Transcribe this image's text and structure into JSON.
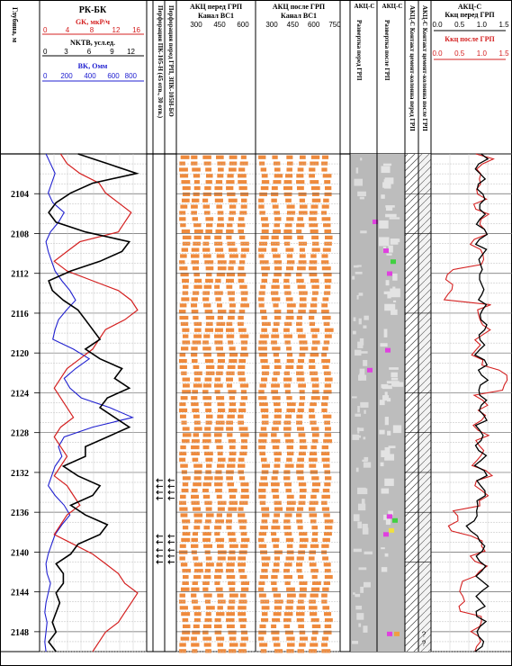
{
  "chart_data": {
    "type": "line",
    "depth_axis": {
      "label": "Глубина, м",
      "range": [
        2100,
        2150
      ],
      "ticks": [
        2104,
        2108,
        2112,
        2116,
        2120,
        2124,
        2128,
        2132,
        2136,
        2140,
        2144,
        2148
      ]
    },
    "tracks": {
      "rk_bk": {
        "title": "РК-БК",
        "curves": [
          {
            "name": "GK, мкР/ч",
            "color": "#d42020",
            "range": [
              0,
              16
            ],
            "ticks": [
              "0",
              "4",
              "8",
              "12",
              "16"
            ]
          },
          {
            "name": "NKTB, усл.ед.",
            "color": "#000000",
            "range": [
              0,
              14
            ],
            "ticks": [
              "0",
              "3",
              "6",
              "9",
              "12"
            ]
          },
          {
            "name": "BK, Омм",
            "color": "#2020d0",
            "range": [
              0,
              900
            ],
            "ticks": [
              "0",
              "200",
              "400",
              "600",
              "800"
            ]
          }
        ]
      },
      "perf_pk": {
        "title": "Перфорация ПК-105-Н (45 отв., 30 отв.)"
      },
      "perf_grp": {
        "title": "Перфорация перед ГРП, ЗПК-105Н-БО"
      },
      "akc_before": {
        "title_line1": "АКЦ перед ГРП",
        "title_line2": "Канал ВС1",
        "ticks": [
          "300",
          "450",
          "600"
        ]
      },
      "akc_after": {
        "title_line1": "АКЦ после ГРП",
        "title_line2": "Канал ВС1",
        "ticks": [
          "300",
          "450",
          "600",
          "750"
        ]
      },
      "akcc_1": {
        "title": "АКЦ-С",
        "vertical": "Развертка перед ГРП"
      },
      "akcc_2": {
        "title": "АКЦ-С",
        "vertical": "Развертка после ГРП"
      },
      "contact_before": {
        "title": "АКЦ-С Контакт цемент-колонна перед ГРП"
      },
      "contact_after": {
        "title": "АКЦ-С Контакт цемент-колонна после ГРП"
      },
      "kcc": {
        "title": "АКЦ-С",
        "curves": [
          {
            "name": "Ккц перед ГРП",
            "color": "#000000",
            "range": [
              0,
              1.5
            ],
            "ticks": [
              "0.0",
              "0.5",
              "1.0",
              "1.5"
            ]
          },
          {
            "name": "Ккц после ГРП",
            "color": "#d42020",
            "range": [
              0,
              1.5
            ],
            "ticks": [
              "0.0",
              "0.5",
              "1.0",
              "1.5"
            ]
          }
        ]
      }
    },
    "perforation_intervals": [
      2132.8,
      2133.4,
      2134.0,
      2134.6,
      2138.4,
      2139.0,
      2139.8,
      2140.4,
      2141.0
    ],
    "unknown_symbol": "?",
    "grid": true,
    "legend": "none"
  }
}
